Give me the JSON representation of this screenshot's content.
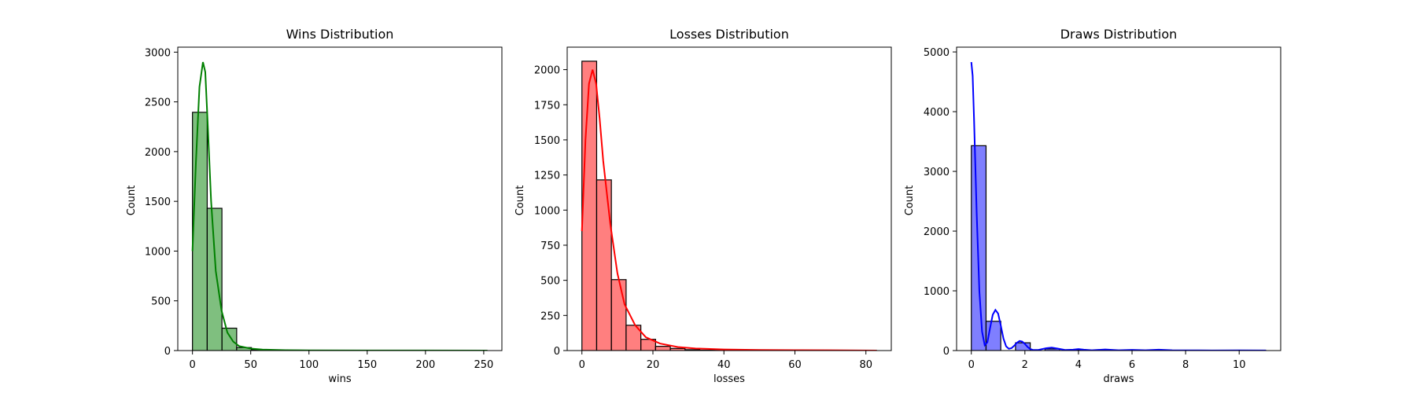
{
  "chart_data": [
    {
      "type": "histogram",
      "title": "Wins Distribution",
      "xlabel": "wins",
      "ylabel": "Count",
      "xlim": [
        -12.6,
        265.6
      ],
      "ylim": [
        0,
        3050
      ],
      "xticks": [
        0,
        50,
        100,
        150,
        200,
        250
      ],
      "yticks": [
        0,
        500,
        1000,
        1500,
        2000,
        2500,
        3000
      ],
      "color": "#008000",
      "bars": [
        {
          "x0": 0,
          "x1": 12.65,
          "value": 2395
        },
        {
          "x0": 12.65,
          "x1": 25.3,
          "value": 1430
        },
        {
          "x0": 25.3,
          "x1": 37.95,
          "value": 225
        },
        {
          "x0": 37.95,
          "x1": 50.6,
          "value": 30
        },
        {
          "x0": 50.6,
          "x1": 63.25,
          "value": 8
        },
        {
          "x0": 63.25,
          "x1": 75.9,
          "value": 3
        },
        {
          "x0": 75.9,
          "x1": 88.55,
          "value": 1
        },
        {
          "x0": 88.55,
          "x1": 101.2,
          "value": 1
        },
        {
          "x0": 101.2,
          "x1": 113.85,
          "value": 0
        },
        {
          "x0": 113.85,
          "x1": 126.5,
          "value": 0
        },
        {
          "x0": 126.5,
          "x1": 139.15,
          "value": 0
        },
        {
          "x0": 139.15,
          "x1": 151.8,
          "value": 0
        },
        {
          "x0": 151.8,
          "x1": 164.45,
          "value": 0
        },
        {
          "x0": 164.45,
          "x1": 177.1,
          "value": 0
        },
        {
          "x0": 177.1,
          "x1": 189.75,
          "value": 0
        },
        {
          "x0": 189.75,
          "x1": 202.4,
          "value": 0
        },
        {
          "x0": 202.4,
          "x1": 215.05,
          "value": 0
        },
        {
          "x0": 215.05,
          "x1": 227.7,
          "value": 0
        },
        {
          "x0": 227.7,
          "x1": 240.35,
          "value": 0
        },
        {
          "x0": 240.35,
          "x1": 253,
          "value": 1
        }
      ],
      "kde": {
        "x": [
          0,
          3,
          6,
          9,
          11,
          13,
          16,
          20,
          25,
          30,
          35,
          40,
          50,
          60,
          80,
          100,
          150,
          200,
          253
        ],
        "y": [
          1000,
          1900,
          2650,
          2900,
          2800,
          2300,
          1500,
          800,
          400,
          180,
          90,
          45,
          20,
          10,
          4,
          2,
          1,
          1,
          0
        ]
      }
    },
    {
      "type": "histogram",
      "title": "Losses Distribution",
      "xlabel": "losses",
      "ylabel": "Count",
      "xlim": [
        -4.15,
        87.15
      ],
      "ylim": [
        0,
        2160
      ],
      "xticks": [
        0,
        20,
        40,
        60,
        80
      ],
      "yticks": [
        0,
        250,
        500,
        750,
        1000,
        1250,
        1500,
        1750,
        2000
      ],
      "color": "#ff0000",
      "bars": [
        {
          "x0": 0,
          "x1": 4.15,
          "value": 2060
        },
        {
          "x0": 4.15,
          "x1": 8.3,
          "value": 1215
        },
        {
          "x0": 8.3,
          "x1": 12.45,
          "value": 505
        },
        {
          "x0": 12.45,
          "x1": 16.6,
          "value": 180
        },
        {
          "x0": 16.6,
          "x1": 20.75,
          "value": 80
        },
        {
          "x0": 20.75,
          "x1": 24.9,
          "value": 30
        },
        {
          "x0": 24.9,
          "x1": 29.05,
          "value": 15
        },
        {
          "x0": 29.05,
          "x1": 33.2,
          "value": 6
        },
        {
          "x0": 33.2,
          "x1": 37.35,
          "value": 3
        },
        {
          "x0": 37.35,
          "x1": 41.5,
          "value": 2
        },
        {
          "x0": 41.5,
          "x1": 45.65,
          "value": 1
        },
        {
          "x0": 45.65,
          "x1": 49.8,
          "value": 1
        },
        {
          "x0": 49.8,
          "x1": 53.95,
          "value": 0
        },
        {
          "x0": 53.95,
          "x1": 58.1,
          "value": 0
        },
        {
          "x0": 58.1,
          "x1": 62.25,
          "value": 1
        },
        {
          "x0": 62.25,
          "x1": 66.4,
          "value": 0
        },
        {
          "x0": 66.4,
          "x1": 70.55,
          "value": 0
        },
        {
          "x0": 70.55,
          "x1": 74.7,
          "value": 0
        },
        {
          "x0": 74.7,
          "x1": 78.85,
          "value": 0
        },
        {
          "x0": 78.85,
          "x1": 83,
          "value": 1
        }
      ],
      "kde": {
        "x": [
          0,
          1,
          2,
          3,
          4,
          5,
          6,
          8,
          10,
          12,
          15,
          18,
          22,
          27,
          32,
          40,
          50,
          60,
          70,
          83
        ],
        "y": [
          850,
          1500,
          1900,
          2000,
          1900,
          1650,
          1350,
          900,
          550,
          330,
          180,
          95,
          50,
          25,
          15,
          8,
          4,
          3,
          2,
          0
        ]
      }
    },
    {
      "type": "histogram",
      "title": "Draws Distribution",
      "xlabel": "draws",
      "ylabel": "Count",
      "xlim": [
        -0.55,
        11.55
      ],
      "ylim": [
        0,
        5080
      ],
      "xticks": [
        0,
        2,
        4,
        6,
        8,
        10
      ],
      "yticks": [
        0,
        1000,
        2000,
        3000,
        4000,
        5000
      ],
      "color": "#0000ff",
      "bars": [
        {
          "x0": 0,
          "x1": 0.55,
          "value": 3430
        },
        {
          "x0": 0.55,
          "x1": 1.1,
          "value": 490
        },
        {
          "x0": 1.1,
          "x1": 1.65,
          "value": 0
        },
        {
          "x0": 1.65,
          "x1": 2.2,
          "value": 130
        },
        {
          "x0": 2.2,
          "x1": 2.75,
          "value": 0
        },
        {
          "x0": 2.75,
          "x1": 3.3,
          "value": 28
        },
        {
          "x0": 3.3,
          "x1": 3.85,
          "value": 0
        },
        {
          "x0": 3.85,
          "x1": 4.4,
          "value": 10
        },
        {
          "x0": 4.4,
          "x1": 4.95,
          "value": 0
        },
        {
          "x0": 4.95,
          "x1": 5.5,
          "value": 5
        },
        {
          "x0": 5.5,
          "x1": 6.05,
          "value": 3
        },
        {
          "x0": 6.05,
          "x1": 6.6,
          "value": 0
        },
        {
          "x0": 6.6,
          "x1": 7.15,
          "value": 3
        },
        {
          "x0": 7.15,
          "x1": 7.7,
          "value": 0
        },
        {
          "x0": 7.7,
          "x1": 8.25,
          "value": 1
        },
        {
          "x0": 8.25,
          "x1": 8.8,
          "value": 0
        },
        {
          "x0": 8.8,
          "x1": 9.35,
          "value": 0
        },
        {
          "x0": 9.35,
          "x1": 9.9,
          "value": 0
        },
        {
          "x0": 9.9,
          "x1": 10.45,
          "value": 1
        },
        {
          "x0": 10.45,
          "x1": 11,
          "value": 1
        }
      ],
      "kde": {
        "x": [
          0,
          0.05,
          0.1,
          0.2,
          0.3,
          0.4,
          0.5,
          0.6,
          0.7,
          0.8,
          0.9,
          1.0,
          1.1,
          1.2,
          1.3,
          1.4,
          1.5,
          1.6,
          1.7,
          1.8,
          1.9,
          2.0,
          2.1,
          2.2,
          2.3,
          2.5,
          2.8,
          3.0,
          3.2,
          3.5,
          3.8,
          4.0,
          4.2,
          4.5,
          5.0,
          5.5,
          6.0,
          6.5,
          7.0,
          7.5,
          8.0,
          9.0,
          10.0,
          11.0
        ],
        "y": [
          4830,
          4600,
          3900,
          2300,
          1000,
          320,
          90,
          140,
          380,
          600,
          680,
          620,
          420,
          200,
          70,
          30,
          40,
          80,
          130,
          160,
          150,
          110,
          60,
          25,
          10,
          10,
          40,
          50,
          35,
          10,
          15,
          25,
          15,
          5,
          18,
          5,
          12,
          5,
          15,
          5,
          3,
          2,
          3,
          2
        ]
      }
    }
  ]
}
